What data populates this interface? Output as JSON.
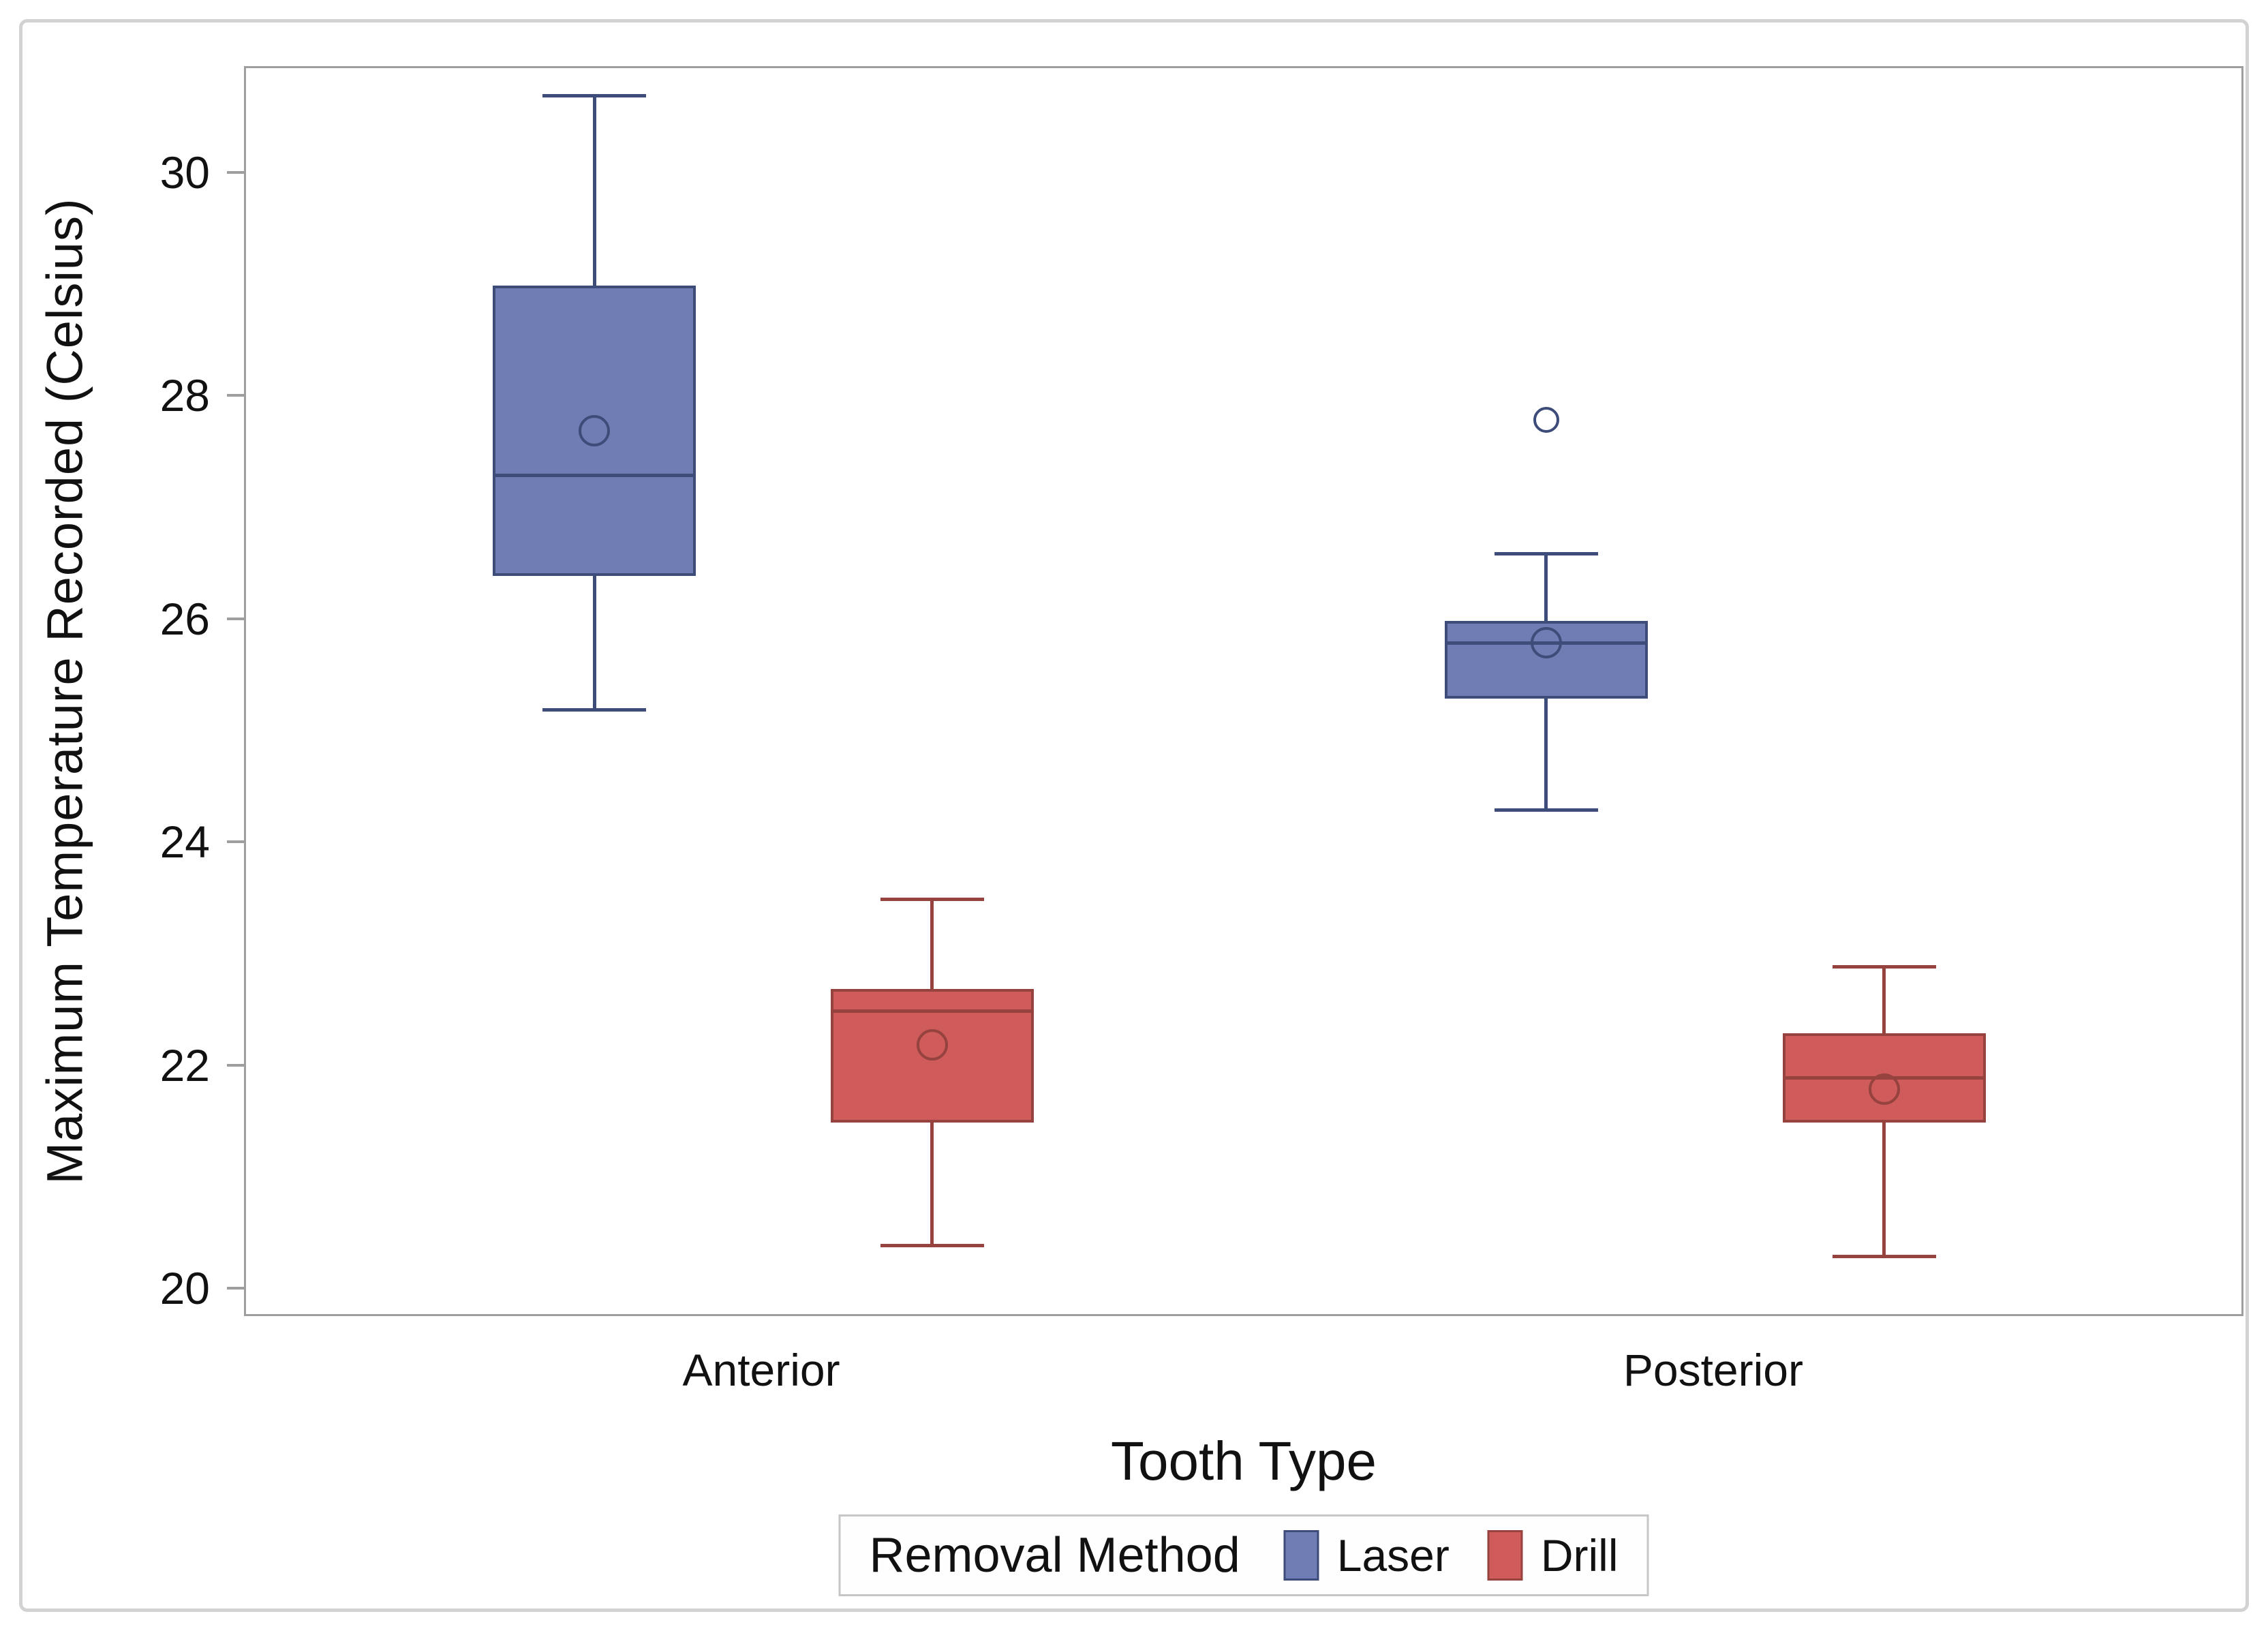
{
  "figure": {
    "background": "#ffffff",
    "frame_border_color": "#d2d2d2",
    "axis_color": "#9e9e9e",
    "text_color": "#111111"
  },
  "chart_data": {
    "type": "boxplot",
    "title": "",
    "xlabel": "Tooth Type",
    "ylabel": "Maximum Temperature Recorded (Celsius)",
    "categories": [
      "Anterior",
      "Posterior"
    ],
    "y_ticks": [
      20,
      22,
      24,
      26,
      28,
      30
    ],
    "y_tick_labels": [
      "20",
      "22",
      "24",
      "26",
      "28",
      "30"
    ],
    "ylim": [
      19.75,
      30.95
    ],
    "grid": false,
    "legend": {
      "title": "Removal Method",
      "position": "bottom",
      "items": [
        "Laser",
        "Drill"
      ]
    },
    "series": [
      {
        "name": "Laser",
        "fill": "#6F7DB4",
        "stroke": "#3E4C7A",
        "boxes": [
          {
            "category": "Anterior",
            "whisker_low": 25.2,
            "q1": 26.4,
            "median": 27.3,
            "q3": 29.0,
            "whisker_high": 30.7,
            "mean": 27.7,
            "outliers": []
          },
          {
            "category": "Posterior",
            "whisker_low": 24.3,
            "q1": 25.3,
            "median": 25.8,
            "q3": 26.0,
            "whisker_high": 26.6,
            "mean": 25.8,
            "outliers": [
              27.8
            ]
          }
        ]
      },
      {
        "name": "Drill",
        "fill": "#CF5C5A",
        "stroke": "#96423F",
        "boxes": [
          {
            "category": "Anterior",
            "whisker_low": 20.4,
            "q1": 21.5,
            "median": 22.5,
            "q3": 22.7,
            "whisker_high": 23.5,
            "mean": 22.2,
            "outliers": []
          },
          {
            "category": "Posterior",
            "whisker_low": 20.3,
            "q1": 21.5,
            "median": 21.9,
            "q3": 22.3,
            "whisker_high": 22.9,
            "mean": 21.8,
            "outliers": []
          }
        ]
      }
    ]
  }
}
